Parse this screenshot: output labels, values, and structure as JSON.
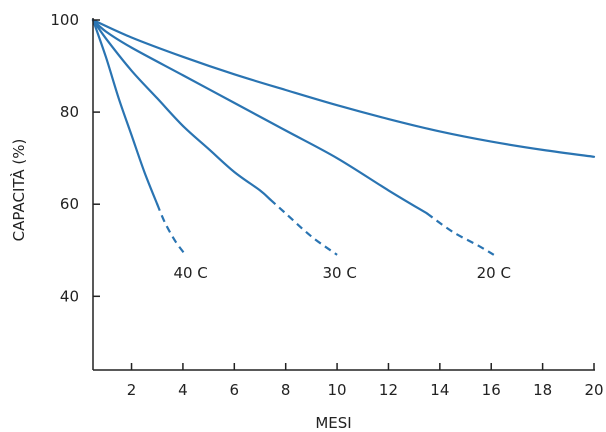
{
  "chart_data": {
    "type": "line",
    "title": "",
    "xlabel": "MESI",
    "ylabel": "CAPACITÀ (%)",
    "xlim": [
      0.5,
      20
    ],
    "ylim": [
      24,
      100
    ],
    "x_ticks": [
      2,
      4,
      6,
      8,
      10,
      12,
      14,
      16,
      18,
      20
    ],
    "y_ticks": [
      40,
      60,
      80,
      100
    ],
    "grid": false,
    "legend": "none",
    "colors": {
      "line": "#2a74b2",
      "axis": "#222222",
      "text": "#222222"
    },
    "series": [
      {
        "name": "40 C",
        "points": [
          [
            0.5,
            100
          ],
          [
            1,
            92
          ],
          [
            1.5,
            83
          ],
          [
            2,
            75
          ],
          [
            2.5,
            67
          ],
          [
            3,
            60
          ]
        ],
        "dashed_points": [
          [
            3,
            60
          ],
          [
            3.3,
            56
          ],
          [
            3.7,
            52
          ],
          [
            4.1,
            49
          ]
        ]
      },
      {
        "name": "30 C",
        "points": [
          [
            0.5,
            100
          ],
          [
            1,
            96
          ],
          [
            2,
            89
          ],
          [
            3,
            83
          ],
          [
            4,
            77
          ],
          [
            5,
            72
          ],
          [
            6,
            67
          ],
          [
            7,
            63
          ],
          [
            7.4,
            61
          ]
        ],
        "dashed_points": [
          [
            7.4,
            61
          ],
          [
            8,
            58
          ],
          [
            9,
            53
          ],
          [
            10,
            49
          ]
        ]
      },
      {
        "name": "20 C",
        "points": [
          [
            0.5,
            100
          ],
          [
            1,
            97.5
          ],
          [
            2,
            94
          ],
          [
            4,
            88
          ],
          [
            6,
            82
          ],
          [
            8,
            76
          ],
          [
            10,
            70
          ],
          [
            12,
            63
          ],
          [
            13.5,
            58
          ]
        ],
        "dashed_points": [
          [
            13.5,
            58
          ],
          [
            14.5,
            54
          ],
          [
            15.5,
            51
          ],
          [
            16.1,
            49
          ]
        ]
      },
      {
        "name": "",
        "points": [
          [
            0.5,
            100
          ],
          [
            2,
            96.2
          ],
          [
            4,
            92
          ],
          [
            6,
            88.2
          ],
          [
            8,
            84.8
          ],
          [
            10,
            81.5
          ],
          [
            12,
            78.5
          ],
          [
            14,
            75.8
          ],
          [
            16,
            73.6
          ],
          [
            18,
            71.8
          ],
          [
            20,
            70.3
          ]
        ],
        "dashed_points": []
      }
    ],
    "annotations": [
      {
        "text": "40 C",
        "x": 4.3,
        "y": 44
      },
      {
        "text": "30 C",
        "x": 10.1,
        "y": 44
      },
      {
        "text": "20 C",
        "x": 16.1,
        "y": 44
      }
    ]
  }
}
